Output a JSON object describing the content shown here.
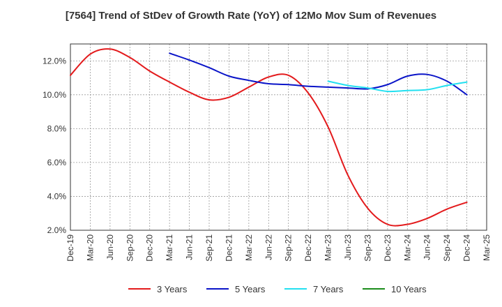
{
  "chart_data": {
    "type": "line",
    "title": "[7564]  Trend of StDev of Growth Rate (YoY) of 12Mo Mov Sum of Revenues",
    "xlabel": "",
    "ylabel": "",
    "ylim": [
      2.0,
      13.0
    ],
    "y_ticks": [
      2.0,
      4.0,
      6.0,
      8.0,
      10.0,
      12.0
    ],
    "y_tick_format": "percent_1dp",
    "grid": "dashed",
    "legend_position": "bottom",
    "categories": [
      "Dec-19",
      "Mar-20",
      "Jun-20",
      "Sep-20",
      "Dec-20",
      "Mar-21",
      "Jun-21",
      "Sep-21",
      "Dec-21",
      "Mar-22",
      "Jun-22",
      "Sep-22",
      "Dec-22",
      "Mar-23",
      "Jun-23",
      "Sep-23",
      "Dec-23",
      "Mar-24",
      "Jun-24",
      "Sep-24",
      "Dec-24",
      "Mar-25"
    ],
    "series": [
      {
        "name": "3 Years",
        "color": "#e31a1c",
        "values": [
          11.15,
          12.4,
          12.7,
          12.2,
          11.4,
          10.75,
          10.15,
          9.7,
          9.85,
          10.45,
          11.05,
          11.15,
          10.1,
          8.1,
          5.25,
          3.3,
          2.35,
          2.35,
          2.7,
          3.25,
          3.65,
          null
        ]
      },
      {
        "name": "5 Years",
        "color": "#0a14c8",
        "values": [
          null,
          null,
          null,
          null,
          null,
          12.45,
          12.05,
          11.6,
          11.1,
          10.85,
          10.65,
          10.6,
          10.5,
          10.45,
          10.4,
          10.35,
          10.6,
          11.1,
          11.2,
          10.8,
          10.0,
          null
        ]
      },
      {
        "name": "7 Years",
        "color": "#22e0f0",
        "values": [
          null,
          null,
          null,
          null,
          null,
          null,
          null,
          null,
          null,
          null,
          null,
          null,
          null,
          10.8,
          10.55,
          10.4,
          10.2,
          10.25,
          10.3,
          10.55,
          10.75,
          null
        ]
      },
      {
        "name": "10 Years",
        "color": "#1a8c1a",
        "values": [
          null,
          null,
          null,
          null,
          null,
          null,
          null,
          null,
          null,
          null,
          null,
          null,
          null,
          null,
          null,
          null,
          null,
          null,
          null,
          null,
          null,
          null
        ]
      }
    ]
  }
}
